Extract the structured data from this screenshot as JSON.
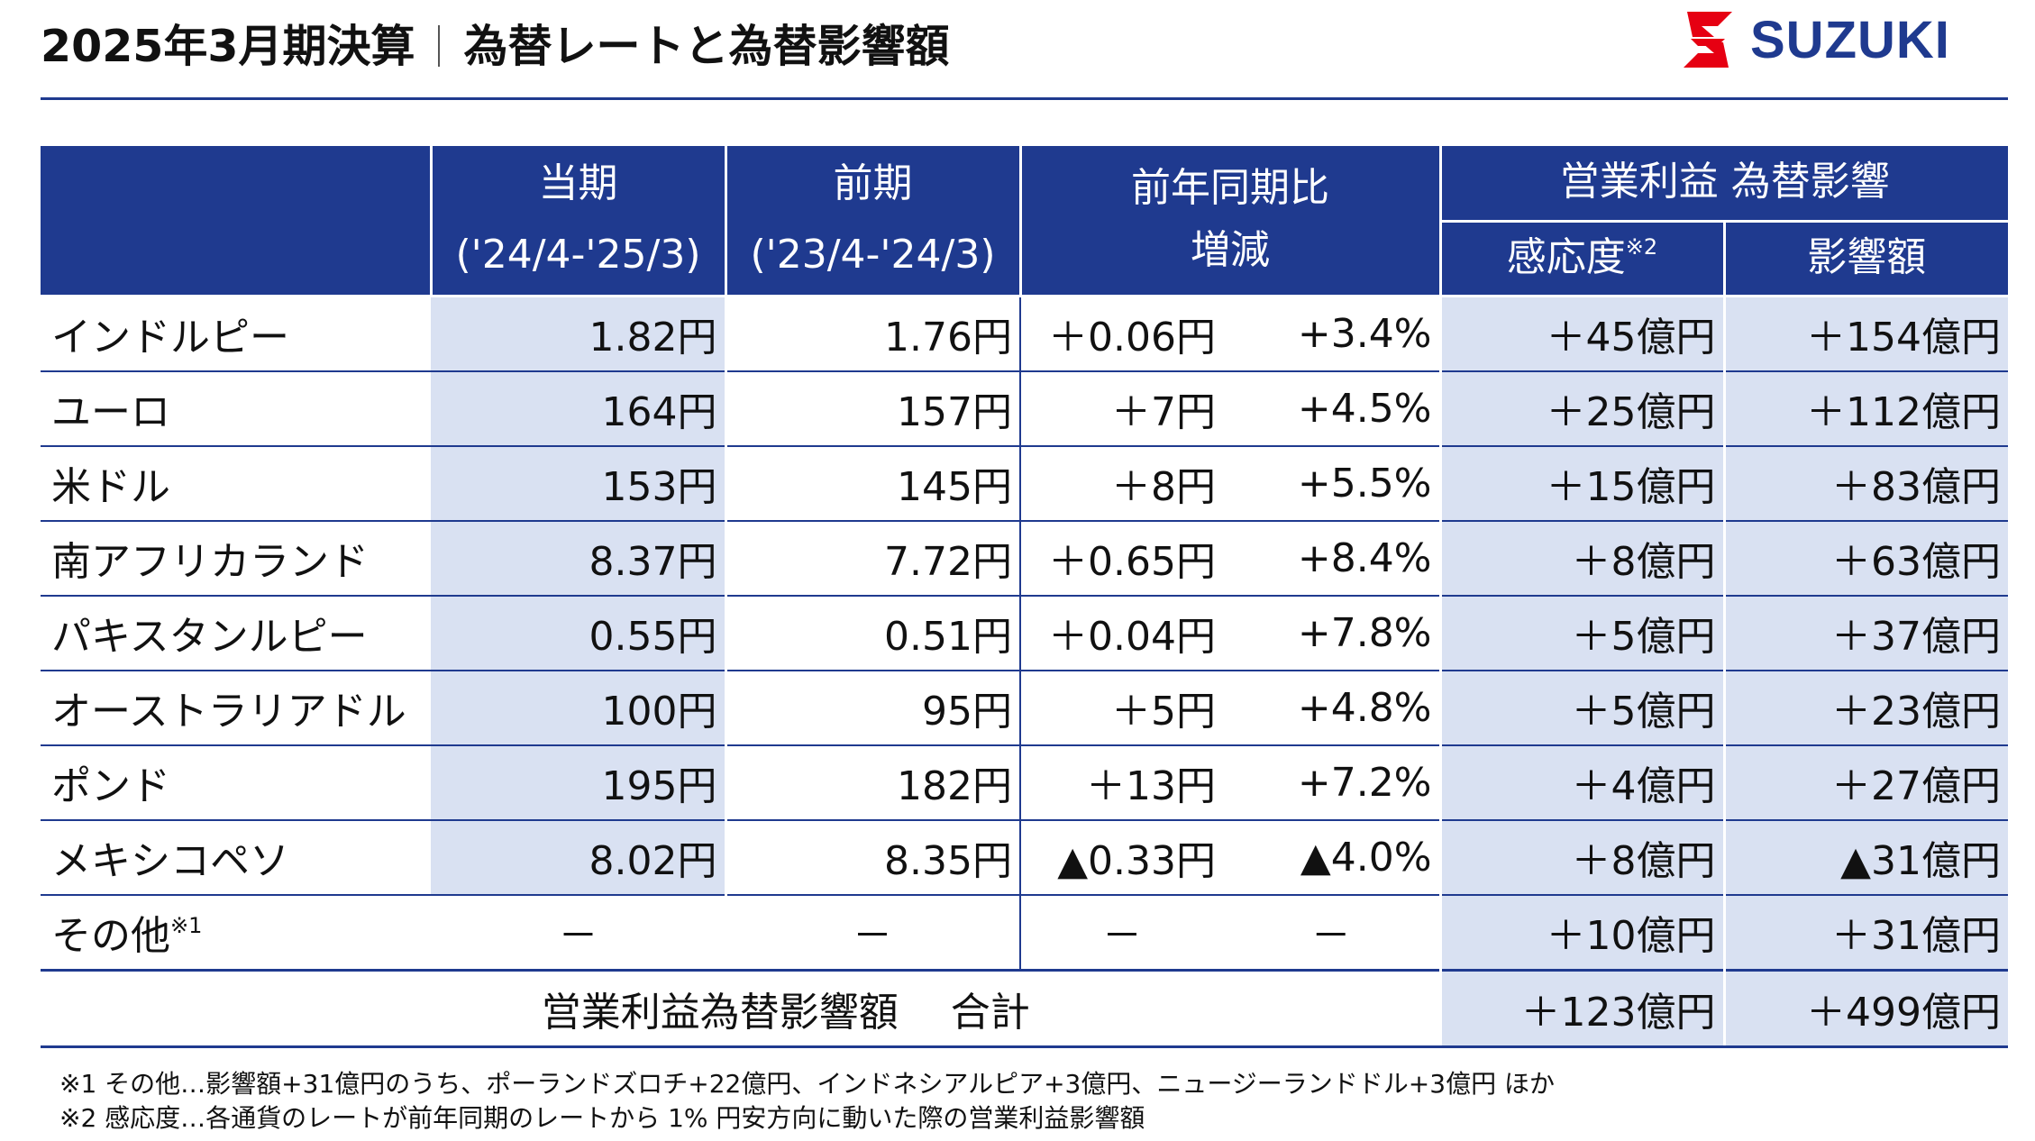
{
  "header": {
    "title_main": "2025年3月期決算",
    "title_sub": "為替レートと為替影響額",
    "brand": "SUZUKI"
  },
  "colors": {
    "brand_blue": "#1f3a8f",
    "shade": "#d9e1f2",
    "logo_red": "#e60012"
  },
  "table": {
    "headers": {
      "current_label": "当期",
      "current_period": "('24/4-'25/3)",
      "prior_label": "前期",
      "prior_period": "('23/4-'24/3)",
      "yoy_line1": "前年同期比",
      "yoy_line2": "増減",
      "impact_group": "営業利益 為替影響",
      "sensitivity": "感応度",
      "sensitivity_note": "※2",
      "impact_amount": "影響額"
    },
    "rows": [
      {
        "currency": "インドルピー",
        "current": "1.82円",
        "prior": "1.76円",
        "change": "＋0.06円",
        "change_pct": "+3.4%",
        "sensitivity": "＋45億円",
        "impact": "＋154億円"
      },
      {
        "currency": "ユーロ",
        "current": "164円",
        "prior": "157円",
        "change": "＋7円",
        "change_pct": "+4.5%",
        "sensitivity": "＋25億円",
        "impact": "＋112億円"
      },
      {
        "currency": "米ドル",
        "current": "153円",
        "prior": "145円",
        "change": "＋8円",
        "change_pct": "+5.5%",
        "sensitivity": "＋15億円",
        "impact": "＋83億円"
      },
      {
        "currency": "南アフリカランド",
        "current": "8.37円",
        "prior": "7.72円",
        "change": "＋0.65円",
        "change_pct": "+8.4%",
        "sensitivity": "＋8億円",
        "impact": "＋63億円"
      },
      {
        "currency": "パキスタンルピー",
        "current": "0.55円",
        "prior": "0.51円",
        "change": "＋0.04円",
        "change_pct": "+7.8%",
        "sensitivity": "＋5億円",
        "impact": "＋37億円"
      },
      {
        "currency": "オーストラリアドル",
        "current": "100円",
        "prior": "95円",
        "change": "＋5円",
        "change_pct": "+4.8%",
        "sensitivity": "＋5億円",
        "impact": "＋23億円"
      },
      {
        "currency": "ポンド",
        "current": "195円",
        "prior": "182円",
        "change": "＋13円",
        "change_pct": "+7.2%",
        "sensitivity": "＋4億円",
        "impact": "＋27億円"
      },
      {
        "currency": "メキシコペソ",
        "current": "8.02円",
        "prior": "8.35円",
        "change": "▲0.33円",
        "change_pct": "▲4.0%",
        "sensitivity": "＋8億円",
        "impact": "▲31億円"
      }
    ],
    "other": {
      "currency": "その他",
      "note": "※1",
      "current": "－",
      "prior": "－",
      "change": "－",
      "change_pct": "－",
      "sensitivity": "＋10億円",
      "impact": "＋31億円"
    },
    "total": {
      "label": "営業利益為替影響額　 合計",
      "sensitivity": "＋123億円",
      "impact": "＋499億円"
    }
  },
  "notes": [
    "※1 その他…影響額+31億円のうち、ポーランドズロチ+22億円、インドネシアルピア+3億円、ニュージーランドドル+3億円 ほか",
    "※2 感応度…各通貨のレートが前年同期のレートから 1% 円安方向に動いた際の営業利益影響額"
  ]
}
